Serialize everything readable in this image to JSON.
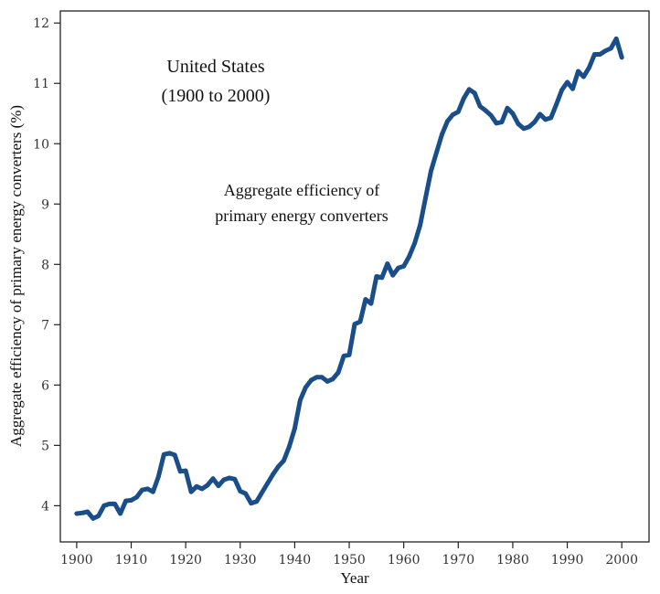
{
  "chart_data": {
    "type": "line",
    "title": "United States",
    "subtitle": "(1900 to 2000)",
    "annotation_lines": [
      "Aggregate efficiency of",
      "primary energy converters"
    ],
    "xlabel": "Year",
    "ylabel": "Aggregate efficiency of primary energy converters (%)",
    "xlim": [
      1897,
      2005
    ],
    "ylim": [
      3.4,
      12.2
    ],
    "x_ticks": [
      1900,
      1910,
      1920,
      1930,
      1940,
      1950,
      1960,
      1970,
      1980,
      1990,
      2000
    ],
    "y_ticks": [
      4,
      5,
      6,
      7,
      8,
      9,
      10,
      11,
      12
    ],
    "grid": false,
    "line_color": "#1a4e8a",
    "series": [
      {
        "name": "Aggregate efficiency of primary energy converters",
        "x": [
          1900,
          1901,
          1902,
          1903,
          1904,
          1905,
          1906,
          1907,
          1908,
          1909,
          1910,
          1911,
          1912,
          1913,
          1914,
          1915,
          1916,
          1917,
          1918,
          1919,
          1920,
          1921,
          1922,
          1923,
          1924,
          1925,
          1926,
          1927,
          1928,
          1929,
          1930,
          1931,
          1932,
          1933,
          1934,
          1935,
          1936,
          1937,
          1938,
          1939,
          1940,
          1941,
          1942,
          1943,
          1944,
          1945,
          1946,
          1947,
          1948,
          1949,
          1950,
          1951,
          1952,
          1953,
          1954,
          1955,
          1956,
          1957,
          1958,
          1959,
          1960,
          1961,
          1962,
          1963,
          1964,
          1965,
          1966,
          1967,
          1968,
          1969,
          1970,
          1971,
          1972,
          1973,
          1974,
          1975,
          1976,
          1977,
          1978,
          1979,
          1980,
          1981,
          1982,
          1983,
          1984,
          1985,
          1986,
          1987,
          1988,
          1989,
          1990,
          1991,
          1992,
          1993,
          1994,
          1995,
          1996,
          1997,
          1998,
          1999,
          2000
        ],
        "values": [
          3.87,
          3.88,
          3.9,
          3.79,
          3.83,
          4.0,
          4.03,
          4.03,
          3.87,
          4.08,
          4.09,
          4.14,
          4.26,
          4.28,
          4.23,
          4.48,
          4.85,
          4.87,
          4.84,
          4.57,
          4.58,
          4.23,
          4.32,
          4.28,
          4.34,
          4.45,
          4.33,
          4.43,
          4.46,
          4.44,
          4.24,
          4.2,
          4.04,
          4.07,
          4.22,
          4.37,
          4.52,
          4.65,
          4.75,
          4.98,
          5.28,
          5.75,
          5.96,
          6.08,
          6.13,
          6.13,
          6.06,
          6.1,
          6.21,
          6.48,
          6.5,
          7.01,
          7.05,
          7.42,
          7.35,
          7.8,
          7.78,
          8.01,
          7.82,
          7.94,
          7.97,
          8.13,
          8.35,
          8.65,
          9.1,
          9.55,
          9.85,
          10.15,
          10.37,
          10.48,
          10.53,
          10.75,
          10.9,
          10.84,
          10.62,
          10.55,
          10.47,
          10.34,
          10.36,
          10.59,
          10.5,
          10.33,
          10.25,
          10.28,
          10.36,
          10.49,
          10.4,
          10.43,
          10.65,
          10.89,
          11.02,
          10.91,
          11.2,
          11.11,
          11.26,
          11.48,
          11.48,
          11.54,
          11.58,
          11.74,
          11.43
        ]
      }
    ]
  }
}
